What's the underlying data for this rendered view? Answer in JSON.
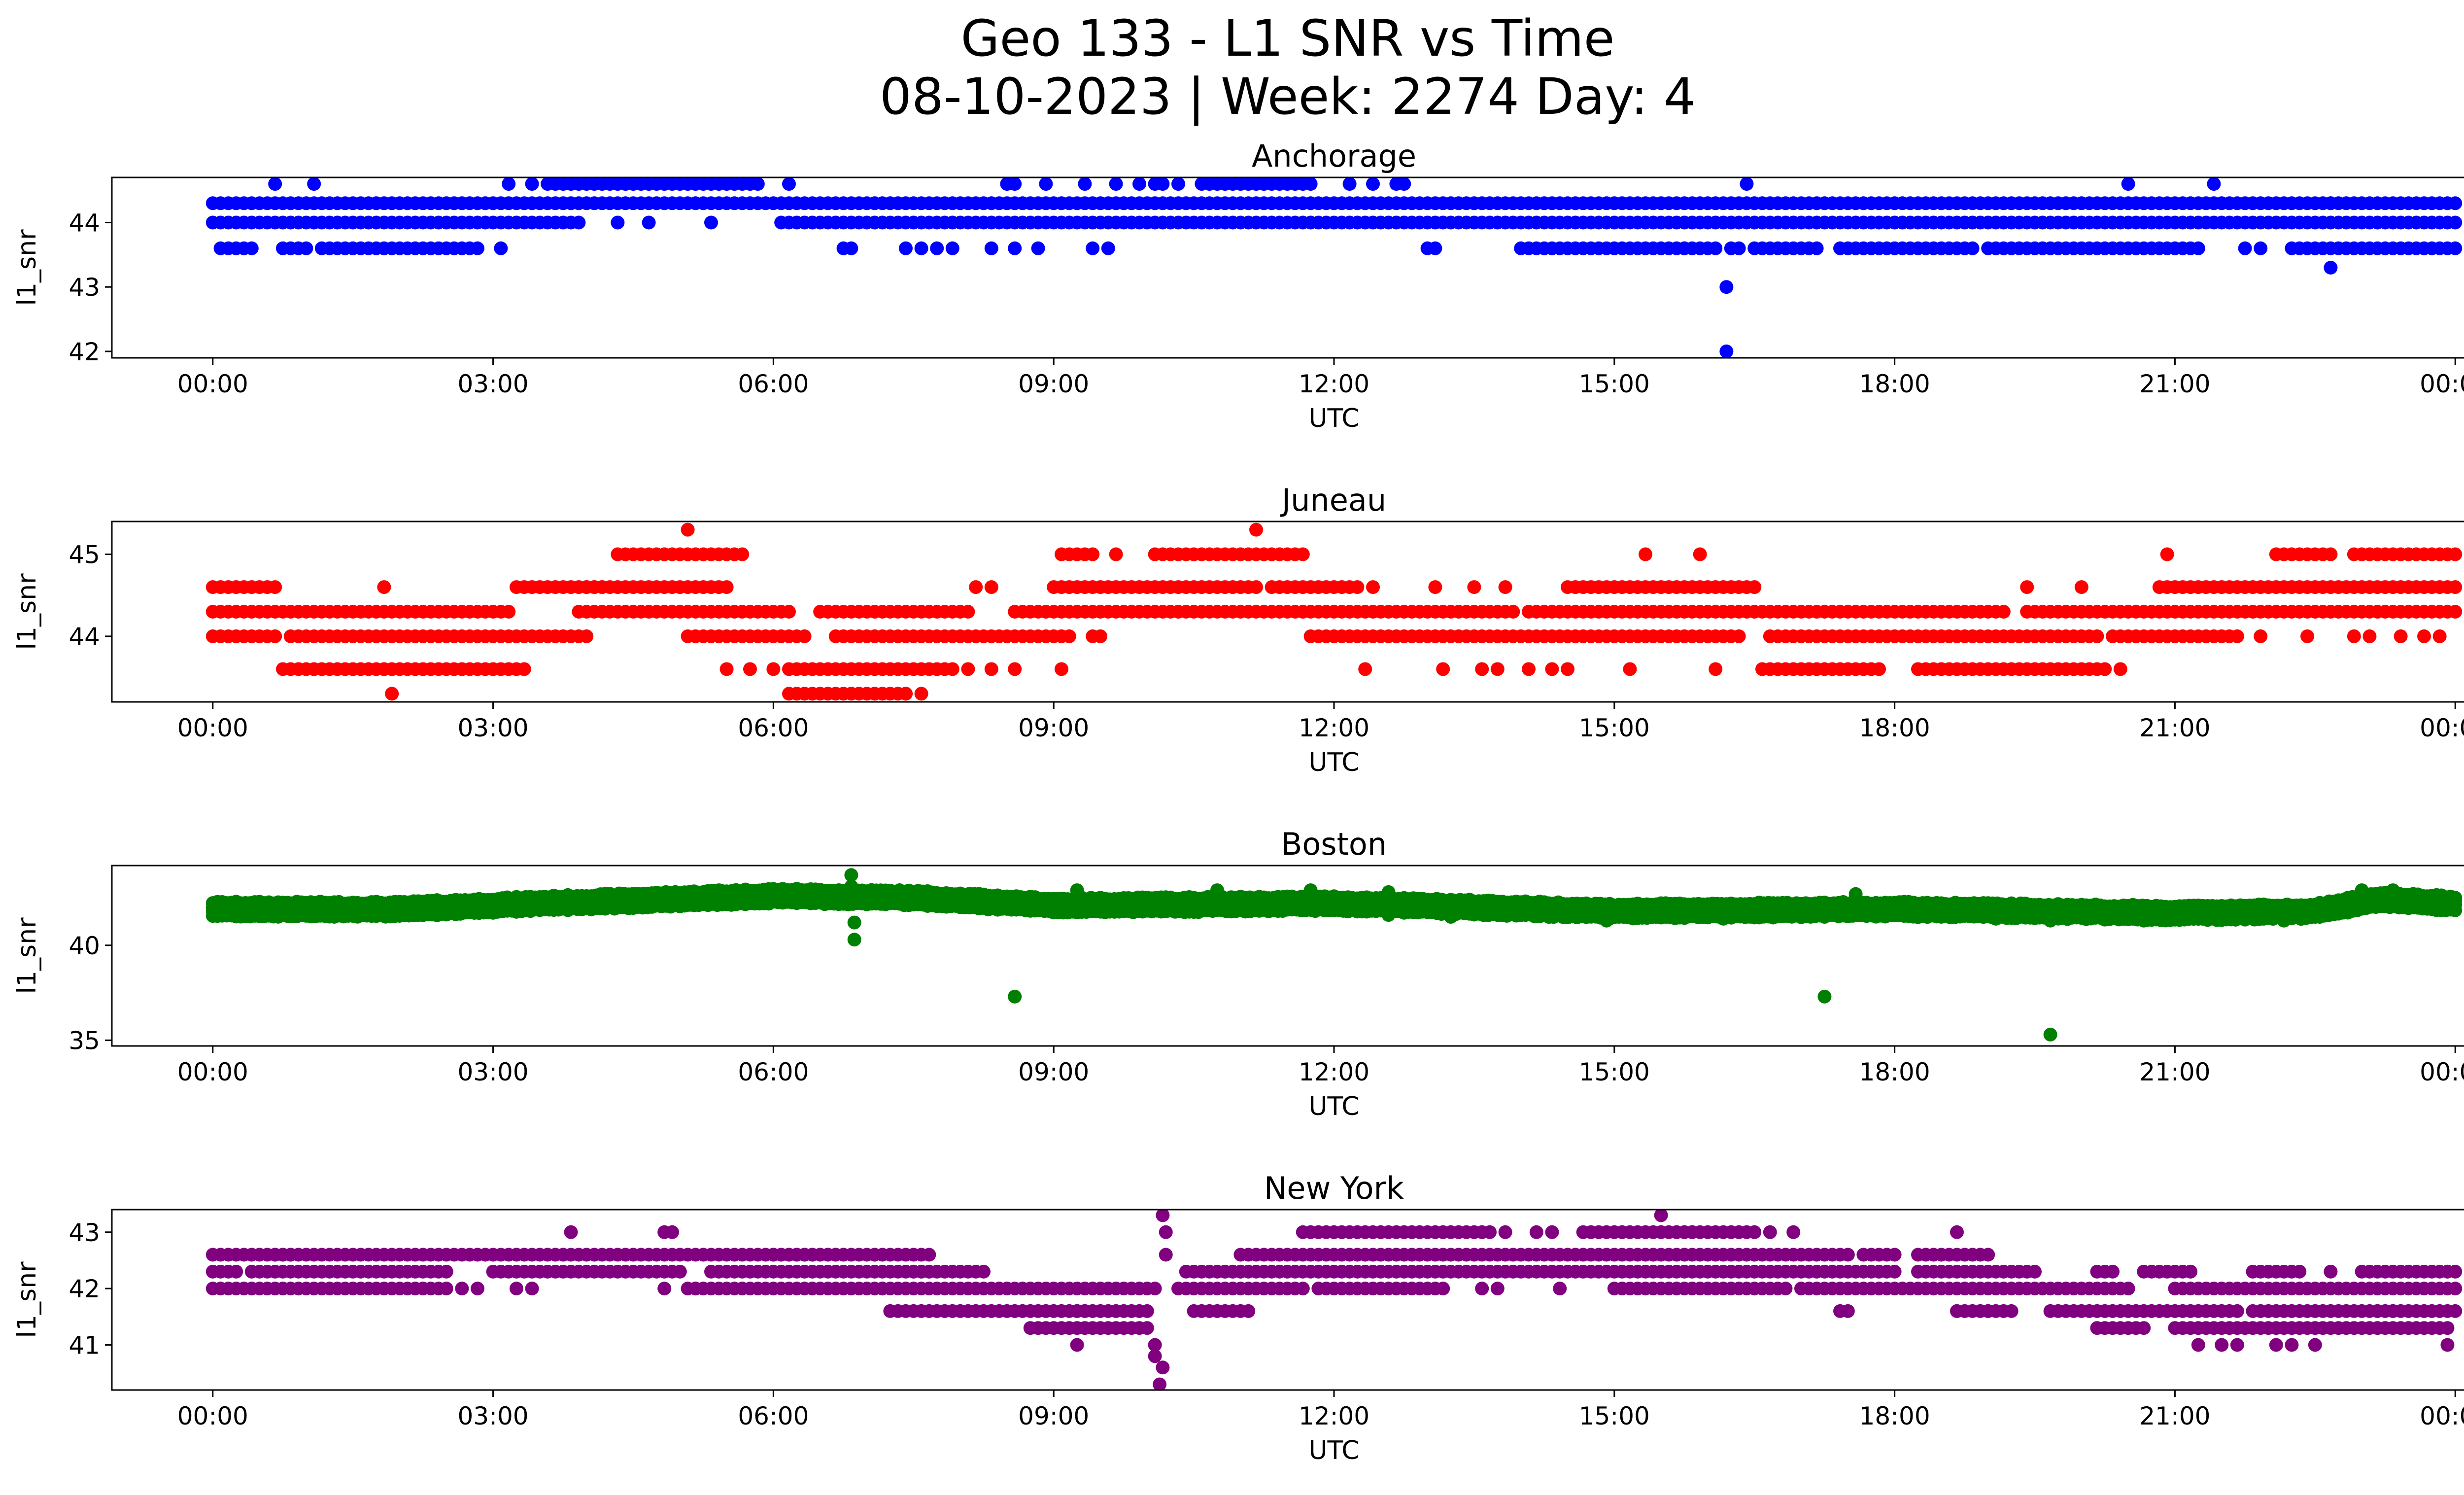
{
  "figure": {
    "title_line1": "Geo 133 - L1 SNR vs Time",
    "title_line2": "08-10-2023 | Week: 2274 Day: 4"
  },
  "chart_data": [
    {
      "type": "scatter",
      "title": "Anchorage",
      "xlabel": "UTC",
      "ylabel": "l1_snr",
      "color": "#0000ff",
      "xlim": [
        "00:00",
        "24:00"
      ],
      "ylim": [
        41.9,
        44.7
      ],
      "x_ticks": [
        "00:00",
        "03:00",
        "06:00",
        "09:00",
        "12:00",
        "15:00",
        "18:00",
        "21:00",
        "00:00"
      ],
      "y_ticks": [
        42,
        43,
        44
      ],
      "levels": [
        {
          "y": 44.3,
          "segments": [
            [
              "00:00",
              "24:00"
            ]
          ]
        },
        {
          "y": 44.0,
          "segments": [
            [
              "00:00",
              "03:55"
            ],
            [
              "06:05",
              "12:50"
            ],
            [
              "12:55",
              "24:00"
            ]
          ]
        },
        {
          "y": 43.6,
          "segments": [
            [
              "00:05",
              "00:25"
            ],
            [
              "00:45",
              "01:00"
            ],
            [
              "01:10",
              "02:50"
            ],
            [
              "13:00",
              "13:05"
            ],
            [
              "14:00",
              "16:05"
            ],
            [
              "16:30",
              "17:10"
            ],
            [
              "17:25",
              "18:50"
            ],
            [
              "19:00",
              "21:15"
            ],
            [
              "22:15",
              "24:00"
            ]
          ]
        },
        {
          "y": 44.6,
          "segments": [
            [
              "03:40",
              "05:50"
            ],
            [
              "10:35",
              "11:10"
            ],
            [
              "11:15",
              "11:45"
            ]
          ]
        }
      ],
      "points": [
        [
          "00:40",
          44.6
        ],
        [
          "01:05",
          44.6
        ],
        [
          "03:10",
          44.6
        ],
        [
          "03:25",
          44.6
        ],
        [
          "03:35",
          44.6
        ],
        [
          "06:10",
          44.6
        ],
        [
          "08:30",
          44.6
        ],
        [
          "08:35",
          44.6
        ],
        [
          "08:55",
          44.6
        ],
        [
          "09:20",
          44.6
        ],
        [
          "09:40",
          44.6
        ],
        [
          "09:55",
          44.6
        ],
        [
          "10:05",
          44.6
        ],
        [
          "10:10",
          44.6
        ],
        [
          "10:20",
          44.6
        ],
        [
          "12:10",
          44.6
        ],
        [
          "12:25",
          44.6
        ],
        [
          "12:40",
          44.6
        ],
        [
          "12:45",
          44.6
        ],
        [
          "16:25",
          44.6
        ],
        [
          "20:30",
          44.6
        ],
        [
          "21:25",
          44.6
        ],
        [
          "03:05",
          43.6
        ],
        [
          "06:45",
          43.6
        ],
        [
          "06:50",
          43.6
        ],
        [
          "07:25",
          43.6
        ],
        [
          "07:35",
          43.6
        ],
        [
          "07:45",
          43.6
        ],
        [
          "07:55",
          43.6
        ],
        [
          "08:20",
          43.6
        ],
        [
          "08:35",
          43.6
        ],
        [
          "08:50",
          43.6
        ],
        [
          "09:25",
          43.6
        ],
        [
          "09:35",
          43.6
        ],
        [
          "15:45",
          43.6
        ],
        [
          "16:15",
          43.6
        ],
        [
          "16:20",
          43.6
        ],
        [
          "21:45",
          43.6
        ],
        [
          "21:55",
          43.6
        ],
        [
          "04:20",
          44.0
        ],
        [
          "04:40",
          44.0
        ],
        [
          "05:20",
          44.0
        ],
        [
          "22:40",
          44.3
        ],
        [
          "16:12",
          43.0
        ],
        [
          "16:12",
          42.0
        ],
        [
          "22:40",
          43.3
        ]
      ]
    },
    {
      "type": "scatter",
      "title": "Juneau",
      "xlabel": "UTC",
      "ylabel": "l1_snr",
      "color": "#ff0000",
      "xlim": [
        "00:00",
        "24:00"
      ],
      "ylim": [
        43.2,
        45.4
      ],
      "x_ticks": [
        "00:00",
        "03:00",
        "06:00",
        "09:00",
        "12:00",
        "15:00",
        "18:00",
        "21:00",
        "00:00"
      ],
      "y_ticks": [
        44,
        45
      ],
      "levels": [
        {
          "y": 44.3,
          "segments": [
            [
              "00:00",
              "03:10"
            ],
            [
              "03:55",
              "06:10"
            ],
            [
              "06:30",
              "08:05"
            ],
            [
              "08:35",
              "11:40"
            ],
            [
              "11:40",
              "13:55"
            ],
            [
              "14:05",
              "19:10"
            ],
            [
              "19:25",
              "24:00"
            ]
          ]
        },
        {
          "y": 44.0,
          "segments": [
            [
              "00:00",
              "00:40"
            ],
            [
              "00:50",
              "04:00"
            ],
            [
              "05:05",
              "06:20"
            ],
            [
              "06:40",
              "09:10"
            ],
            [
              "11:45",
              "14:05"
            ],
            [
              "14:10",
              "16:20"
            ],
            [
              "16:40",
              "20:10"
            ],
            [
              "20:20",
              "21:40"
            ]
          ]
        },
        {
          "y": 44.6,
          "segments": [
            [
              "00:00",
              "00:40"
            ],
            [
              "03:15",
              "04:10"
            ],
            [
              "04:00",
              "05:30"
            ],
            [
              "09:00",
              "11:10"
            ],
            [
              "11:20",
              "12:10"
            ],
            [
              "14:30",
              "16:30"
            ],
            [
              "20:50",
              "24:00"
            ]
          ]
        },
        {
          "y": 43.6,
          "segments": [
            [
              "00:45",
              "03:20"
            ],
            [
              "06:10",
              "07:55"
            ],
            [
              "16:35",
              "17:50"
            ],
            [
              "18:15",
              "20:10"
            ]
          ]
        },
        {
          "y": 45.0,
          "segments": [
            [
              "04:20",
              "05:40"
            ],
            [
              "09:05",
              "09:25"
            ],
            [
              "10:05",
              "11:40"
            ],
            [
              "22:05",
              "22:40"
            ],
            [
              "22:55",
              "24:00"
            ]
          ]
        },
        {
          "y": 43.3,
          "segments": [
            [
              "06:10",
              "07:25"
            ]
          ]
        }
      ],
      "points": [
        [
          "01:50",
          44.6
        ],
        [
          "06:35",
          44.3
        ],
        [
          "08:10",
          44.6
        ],
        [
          "08:20",
          44.6
        ],
        [
          "12:15",
          44.6
        ],
        [
          "12:25",
          44.6
        ],
        [
          "13:05",
          44.6
        ],
        [
          "13:30",
          44.6
        ],
        [
          "13:50",
          44.6
        ],
        [
          "15:20",
          45.0
        ],
        [
          "15:55",
          45.0
        ],
        [
          "19:25",
          44.6
        ],
        [
          "20:00",
          44.6
        ],
        [
          "05:30",
          43.6
        ],
        [
          "05:45",
          43.6
        ],
        [
          "06:00",
          43.6
        ],
        [
          "08:05",
          43.6
        ],
        [
          "08:20",
          43.6
        ],
        [
          "08:35",
          43.6
        ],
        [
          "09:05",
          43.6
        ],
        [
          "12:20",
          43.6
        ],
        [
          "13:10",
          43.6
        ],
        [
          "13:35",
          43.6
        ],
        [
          "13:45",
          43.6
        ],
        [
          "14:05",
          43.6
        ],
        [
          "14:20",
          43.6
        ],
        [
          "14:30",
          43.6
        ],
        [
          "15:10",
          43.6
        ],
        [
          "16:05",
          43.6
        ],
        [
          "20:15",
          43.6
        ],
        [
          "20:25",
          43.6
        ],
        [
          "09:25",
          44.0
        ],
        [
          "09:30",
          44.0
        ],
        [
          "21:55",
          44.0
        ],
        [
          "22:25",
          44.0
        ],
        [
          "22:55",
          44.0
        ],
        [
          "23:05",
          44.0
        ],
        [
          "23:25",
          44.0
        ],
        [
          "23:40",
          44.0
        ],
        [
          "23:50",
          44.0
        ],
        [
          "05:05",
          45.3
        ],
        [
          "11:10",
          45.3
        ],
        [
          "01:55",
          43.3
        ],
        [
          "07:25",
          43.3
        ],
        [
          "07:35",
          43.3
        ],
        [
          "09:40",
          45.0
        ],
        [
          "20:55",
          45.0
        ],
        [
          "08:55",
          44.3
        ],
        [
          "10:20",
          44.3
        ]
      ]
    },
    {
      "type": "scatter",
      "title": "Boston",
      "xlabel": "UTC",
      "ylabel": "l1_snr",
      "color": "#008000",
      "xlim": [
        "00:00",
        "24:00"
      ],
      "ylim": [
        34.7,
        44.2
      ],
      "x_ticks": [
        "00:00",
        "03:00",
        "06:00",
        "09:00",
        "12:00",
        "15:00",
        "18:00",
        "21:00",
        "00:00"
      ],
      "y_ticks": [
        35,
        40
      ],
      "band": {
        "start": "00:00",
        "end": "24:00",
        "center_knots": [
          [
            "00:00",
            41.9
          ],
          [
            "02:00",
            41.9
          ],
          [
            "03:30",
            42.2
          ],
          [
            "06:00",
            42.6
          ],
          [
            "07:30",
            42.5
          ],
          [
            "09:00",
            42.1
          ],
          [
            "12:00",
            42.2
          ],
          [
            "15:00",
            41.8
          ],
          [
            "18:00",
            41.9
          ],
          [
            "21:00",
            41.7
          ],
          [
            "22:30",
            41.8
          ],
          [
            "23:10",
            42.4
          ],
          [
            "24:00",
            42.2
          ]
        ],
        "half_width": 0.35
      },
      "points": [
        [
          "06:50",
          43.7
        ],
        [
          "06:50",
          43.1
        ],
        [
          "06:50",
          42.9
        ],
        [
          "06:52",
          41.2
        ],
        [
          "06:52",
          40.3
        ],
        [
          "08:35",
          37.3
        ],
        [
          "17:15",
          37.3
        ],
        [
          "19:40",
          35.3
        ],
        [
          "05:25",
          42.9
        ],
        [
          "09:15",
          42.9
        ],
        [
          "10:45",
          42.9
        ],
        [
          "11:45",
          42.9
        ],
        [
          "12:35",
          42.8
        ],
        [
          "17:35",
          42.7
        ],
        [
          "23:00",
          42.9
        ],
        [
          "23:20",
          42.9
        ],
        [
          "12:35",
          41.6
        ],
        [
          "13:15",
          41.5
        ],
        [
          "14:55",
          41.3
        ],
        [
          "16:10",
          41.4
        ],
        [
          "19:05",
          41.4
        ],
        [
          "19:40",
          41.3
        ],
        [
          "20:40",
          41.3
        ],
        [
          "21:30",
          41.4
        ],
        [
          "22:10",
          41.3
        ]
      ]
    },
    {
      "type": "scatter",
      "title": "New York",
      "xlabel": "UTC",
      "ylabel": "l1_snr",
      "color": "#800080",
      "xlim": [
        "00:00",
        "24:00"
      ],
      "ylim": [
        40.2,
        43.4
      ],
      "x_ticks": [
        "00:00",
        "03:00",
        "06:00",
        "09:00",
        "12:00",
        "15:00",
        "18:00",
        "21:00",
        "00:00"
      ],
      "y_ticks": [
        41,
        42,
        43
      ],
      "levels": [
        {
          "y": 42.3,
          "segments": [
            [
              "00:00",
              "00:15"
            ],
            [
              "00:25",
              "02:30"
            ],
            [
              "03:00",
              "05:00"
            ],
            [
              "05:20",
              "07:40"
            ],
            [
              "07:30",
              "08:15"
            ],
            [
              "10:25",
              "11:00"
            ],
            [
              "10:50",
              "18:00"
            ],
            [
              "18:15",
              "19:30"
            ],
            [
              "20:10",
              "20:20"
            ],
            [
              "20:40",
              "21:10"
            ],
            [
              "21:55",
              "22:20"
            ],
            [
              "23:00",
              "24:00"
            ]
          ]
        },
        {
          "y": 42.0,
          "segments": [
            [
              "00:00",
              "02:30"
            ],
            [
              "05:05",
              "07:10"
            ],
            [
              "07:10",
              "10:05"
            ],
            [
              "10:20",
              "11:40"
            ],
            [
              "11:50",
              "13:10"
            ],
            [
              "15:00",
              "16:50"
            ],
            [
              "17:00",
              "20:30"
            ],
            [
              "21:00",
              "24:00"
            ]
          ]
        },
        {
          "y": 42.6,
          "segments": [
            [
              "00:00",
              "00:50"
            ],
            [
              "00:40",
              "06:40"
            ],
            [
              "06:00",
              "07:40"
            ],
            [
              "11:00",
              "17:30"
            ],
            [
              "17:40",
              "18:00"
            ],
            [
              "18:15",
              "19:00"
            ]
          ]
        },
        {
          "y": 41.6,
          "segments": [
            [
              "07:15",
              "07:25"
            ],
            [
              "07:30",
              "09:20"
            ],
            [
              "09:15",
              "10:00"
            ],
            [
              "10:30",
              "11:05"
            ],
            [
              "18:40",
              "19:15"
            ],
            [
              "19:40",
              "21:40"
            ],
            [
              "21:50",
              "24:00"
            ]
          ]
        },
        {
          "y": 41.3,
          "segments": [
            [
              "08:45",
              "10:00"
            ],
            [
              "20:10",
              "20:40"
            ],
            [
              "21:00",
              "23:50"
            ]
          ]
        },
        {
          "y": 43.0,
          "segments": [
            [
              "11:40",
              "13:40"
            ],
            [
              "14:40",
              "15:50"
            ],
            [
              "15:40",
              "16:30"
            ]
          ]
        }
      ],
      "points": [
        [
          "02:40",
          42.0
        ],
        [
          "02:50",
          42.0
        ],
        [
          "03:15",
          42.0
        ],
        [
          "03:25",
          42.0
        ],
        [
          "04:50",
          42.0
        ],
        [
          "05:10",
          42.0
        ],
        [
          "03:50",
          43.0
        ],
        [
          "04:50",
          43.0
        ],
        [
          "04:55",
          43.0
        ],
        [
          "13:50",
          43.0
        ],
        [
          "14:10",
          43.0
        ],
        [
          "14:20",
          43.0
        ],
        [
          "16:40",
          43.0
        ],
        [
          "16:55",
          43.0
        ],
        [
          "18:40",
          43.0
        ],
        [
          "15:30",
          43.3
        ],
        [
          "13:35",
          42.0
        ],
        [
          "13:45",
          42.0
        ],
        [
          "14:25",
          42.0
        ],
        [
          "17:25",
          41.6
        ],
        [
          "17:30",
          41.6
        ],
        [
          "18:40",
          41.6
        ],
        [
          "19:00",
          41.6
        ],
        [
          "21:10",
          42.3
        ],
        [
          "23:10",
          41.6
        ],
        [
          "23:20",
          41.6
        ],
        [
          "09:15",
          41.0
        ],
        [
          "10:05",
          41.0
        ],
        [
          "21:15",
          41.0
        ],
        [
          "21:30",
          41.0
        ],
        [
          "21:40",
          41.0
        ],
        [
          "22:05",
          41.0
        ],
        [
          "22:15",
          41.0
        ],
        [
          "22:30",
          41.0
        ],
        [
          "23:55",
          41.0
        ],
        [
          "23:55",
          41.3
        ],
        [
          "23:55",
          42.3
        ],
        [
          "10:10",
          43.3
        ],
        [
          "10:12",
          43.0
        ],
        [
          "10:12",
          42.6
        ],
        [
          "10:10",
          40.6
        ],
        [
          "10:08",
          40.3
        ],
        [
          "10:05",
          40.8
        ],
        [
          "21:50",
          42.3
        ],
        [
          "22:40",
          42.3
        ]
      ]
    }
  ]
}
